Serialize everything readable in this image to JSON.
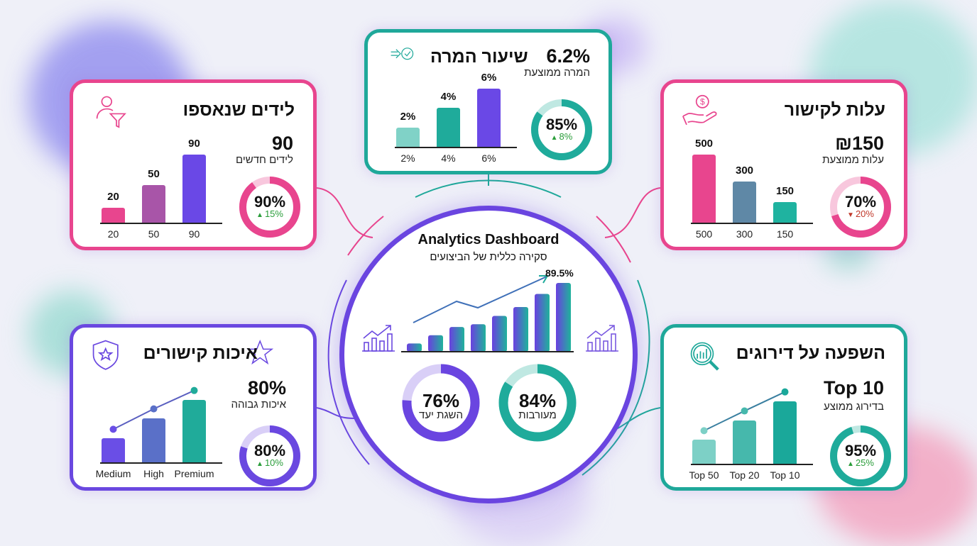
{
  "center": {
    "title": "Analytics Dashboard",
    "subtitle": "סקירה כללית של הביצועים",
    "trend_label": "89.5%",
    "trend_bars": [
      12,
      24,
      36,
      40,
      52,
      65,
      84,
      100
    ],
    "donuts": [
      {
        "value": "76%",
        "percent": 76,
        "label": "השגת יעד",
        "color": "#6a45e0",
        "track": "#d9cff7"
      },
      {
        "value": "84%",
        "percent": 84,
        "label": "מעורבות",
        "color": "#1fab9b",
        "track": "#bfe8e2"
      }
    ]
  },
  "cards": {
    "leads": {
      "title": "לידים שנאספו",
      "icon": "user-funnel-icon",
      "color": "#e8458e",
      "big": "90",
      "sub": "לידים חדשים",
      "donut": {
        "value": "90%",
        "percent": 90,
        "delta": "15%",
        "dir": "up",
        "color": "#e8458e",
        "track": "#f8c7dd"
      },
      "bars": [
        {
          "value": 20,
          "label": "20",
          "top": "20",
          "color": "#e8458e"
        },
        {
          "value": 50,
          "label": "50",
          "top": "50",
          "color": "#a855a8"
        },
        {
          "value": 90,
          "label": "90",
          "top": "90",
          "color": "#6a48e6"
        }
      ],
      "ymax": 90
    },
    "conversion": {
      "title": "שיעור המרה",
      "icon": "arrow-check-icon",
      "color": "#1fa89a",
      "big": "6.2%",
      "sub": "המרה ממוצעת",
      "donut": {
        "value": "85%",
        "percent": 85,
        "delta": "8%",
        "dir": "up",
        "color": "#1fab9b",
        "track": "#bfe8e2"
      },
      "bars": [
        {
          "value": 2,
          "label": "2%",
          "top": "2%",
          "color": "#80d2c7"
        },
        {
          "value": 4,
          "label": "4%",
          "top": "4%",
          "color": "#1fab9b"
        },
        {
          "value": 6,
          "label": "6%",
          "top": "6%",
          "color": "#6a48e6"
        }
      ],
      "ymax": 6
    },
    "cost": {
      "title": "עלות לקישור",
      "icon": "hand-dollar-icon",
      "color": "#e8458e",
      "big": "₪150",
      "sub": "עלות ממוצעת",
      "donut": {
        "value": "70%",
        "percent": 70,
        "delta": "20%",
        "dir": "down",
        "color": "#e8458e",
        "track": "#f8c7dd"
      },
      "bars": [
        {
          "value": 500,
          "label": "500",
          "top": "500",
          "color": "#e8458e"
        },
        {
          "value": 300,
          "label": "300",
          "top": "300",
          "color": "#5f88a6"
        },
        {
          "value": 150,
          "label": "150",
          "top": "150",
          "color": "#1fb3a0"
        }
      ],
      "ymax": 500
    },
    "quality": {
      "title": "איכות קישורים",
      "icon": "shield-star-icon",
      "icon2": "star-icon",
      "color": "#6a48e0",
      "big": "80%",
      "sub": "איכות גבוהה",
      "donut": {
        "value": "80%",
        "percent": 80,
        "delta": "10%",
        "dir": "up",
        "color": "#6a48e0",
        "track": "#d9cff7"
      },
      "bars": [
        {
          "value": 35,
          "label": "Medium",
          "color": "#6a4ee6"
        },
        {
          "value": 65,
          "label": "High",
          "color": "#5a70c8"
        },
        {
          "value": 92,
          "label": "Premium",
          "color": "#20ab9a"
        }
      ],
      "ymax": 100,
      "trend": true,
      "trend_color": "#5a5fc0"
    },
    "ranking": {
      "title": "השפעה על דירוגים",
      "icon": "search-chart-icon",
      "color": "#1fa89a",
      "big": "Top 10",
      "sub": "בדירוג ממוצע",
      "donut": {
        "value": "95%",
        "percent": 95,
        "delta": "25%",
        "dir": "up",
        "color": "#1fab9b",
        "track": "#bfe8e2"
      },
      "bars": [
        {
          "value": 35,
          "label": "Top 50",
          "color": "#7dd0c6"
        },
        {
          "value": 64,
          "label": "Top 20",
          "color": "#46b8ac"
        },
        {
          "value": 92,
          "label": "Top 10",
          "color": "#1aa89a"
        }
      ],
      "ymax": 100,
      "trend": true,
      "trend_color": "#3a7fa0"
    }
  },
  "colors": {
    "up": "#2a9d3a",
    "down": "#c0392b"
  }
}
